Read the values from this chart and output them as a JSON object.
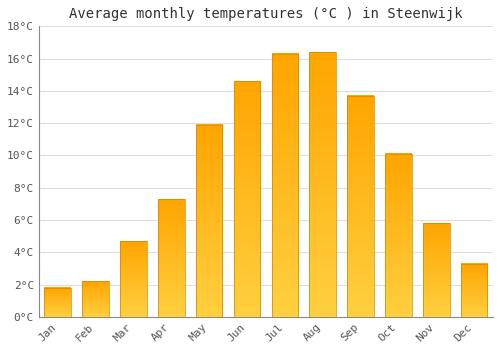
{
  "title": "Average monthly temperatures (°C ) in Steenwijk",
  "months": [
    "Jan",
    "Feb",
    "Mar",
    "Apr",
    "May",
    "Jun",
    "Jul",
    "Aug",
    "Sep",
    "Oct",
    "Nov",
    "Dec"
  ],
  "values": [
    1.8,
    2.2,
    4.7,
    7.3,
    11.9,
    14.6,
    16.3,
    16.4,
    13.7,
    10.1,
    5.8,
    3.3
  ],
  "bar_color_light": "#FFD040",
  "bar_color_dark": "#FFA500",
  "bar_edge_color": "#CC8800",
  "background_color": "#FFFFFF",
  "grid_color": "#DDDDDD",
  "ylim": [
    0,
    18
  ],
  "yticks": [
    0,
    2,
    4,
    6,
    8,
    10,
    12,
    14,
    16,
    18
  ],
  "ytick_labels": [
    "0°C",
    "2°C",
    "4°C",
    "6°C",
    "8°C",
    "10°C",
    "12°C",
    "14°C",
    "16°C",
    "18°C"
  ],
  "title_fontsize": 10,
  "tick_fontsize": 8,
  "tick_color": "#555555",
  "title_color": "#333333"
}
